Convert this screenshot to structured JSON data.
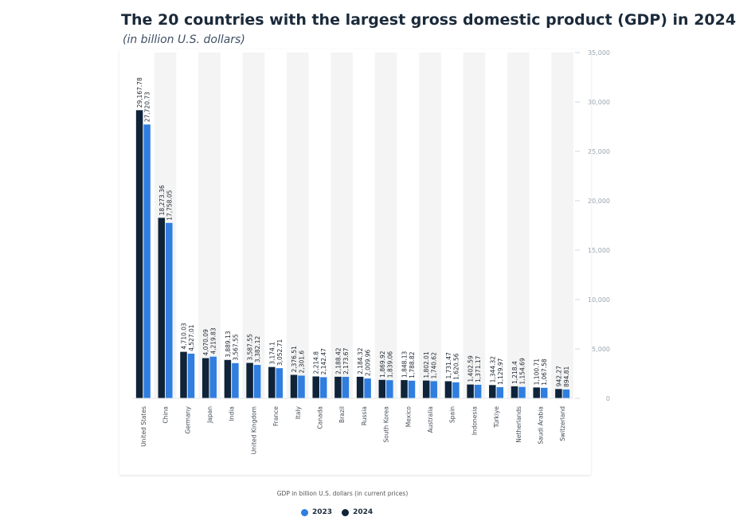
{
  "chart_data": {
    "type": "bar",
    "title": "The 20 countries with the largest gross domestic product (GDP) in 2024",
    "subtitle": "(in billion U.S. dollars)",
    "xlabel": "GDP in billion U.S. dollars (in current prices)",
    "ylabel": "",
    "ylim": [
      0,
      35000
    ],
    "yticks": [
      0,
      5000,
      10000,
      15000,
      20000,
      25000,
      30000,
      35000
    ],
    "ytick_labels": [
      "0",
      "5,000",
      "10,000",
      "15,000",
      "20,000",
      "25,000",
      "30,000",
      "35,000"
    ],
    "grid": false,
    "legend_position": "bottom-center",
    "categories": [
      "United States",
      "China",
      "Germany",
      "Japan",
      "India",
      "United Kingdom",
      "France",
      "Italy",
      "Canada",
      "Brazil",
      "Russia",
      "South Korea",
      "Mexico",
      "Australia",
      "Spain",
      "Indonesia",
      "Türkiye",
      "Netherlands",
      "Saudi Arabia",
      "Switzerland"
    ],
    "series": [
      {
        "name": "2024",
        "color": "#0f2339",
        "values": [
          29167.78,
          18273.36,
          4710.03,
          4070.09,
          3889.13,
          3587.55,
          3174.1,
          2376.51,
          2214.8,
          2188.42,
          2184.32,
          1869.92,
          1848.13,
          1802.01,
          1731.47,
          1402.59,
          1344.32,
          1218.4,
          1100.71,
          942.27
        ],
        "labels": [
          "29,167.78",
          "18,273.36",
          "4,710.03",
          "4,070.09",
          "3,889.13",
          "3,587.55",
          "3,174.1",
          "2,376.51",
          "2,214.8",
          "2,188.42",
          "2,184.32",
          "1,869.92",
          "1,848.13",
          "1,802.01",
          "1,731.47",
          "1,402.59",
          "1,344.32",
          "1,218.4",
          "1,100.71",
          "942.27"
        ]
      },
      {
        "name": "2023",
        "color": "#2f7ee0",
        "values": [
          27720.73,
          17758.05,
          4527.01,
          4219.83,
          3567.55,
          3382.12,
          3052.71,
          2301.6,
          2142.47,
          2173.67,
          2009.96,
          1839.06,
          1788.82,
          1740.62,
          1620.56,
          1371.17,
          1129.97,
          1154.69,
          1067.58,
          894.81
        ],
        "labels": [
          "27,720.73",
          "17,758.05",
          "4,527.01",
          "4,219.83",
          "3,567.55",
          "3,382.12",
          "3,052.71",
          "2,301.6",
          "2,142.47",
          "2,173.67",
          "2,009.96",
          "1,839.06",
          "1,788.82",
          "1,740.62",
          "1,620.56",
          "1,371.17",
          "1,129.97",
          "1,154.69",
          "1,067.58",
          "894.81"
        ]
      }
    ],
    "legend": [
      {
        "label": "2023",
        "color": "#2f7ee0"
      },
      {
        "label": "2024",
        "color": "#0f2339"
      }
    ]
  }
}
